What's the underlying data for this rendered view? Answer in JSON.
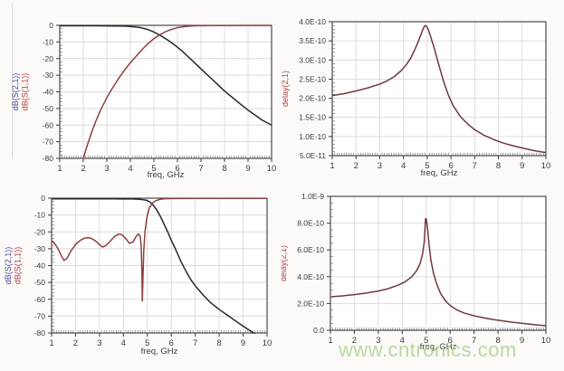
{
  "watermark": {
    "text": "www.cntronics.com",
    "color": "#a9d08e"
  },
  "axis_text_color": "#3b3b3b",
  "grid_color": "#d9d9de",
  "border_color": "#3a3a3a",
  "chart_data": [
    {
      "id": "top-left",
      "type": "line",
      "title": "",
      "xlabel": "freq, GHz",
      "xlim": [
        1,
        10
      ],
      "ylim": [
        -80,
        0
      ],
      "grid": true,
      "legend": "none",
      "x_ticks": {
        "values": [
          1,
          2,
          3,
          4,
          5,
          6,
          7,
          8,
          9,
          10
        ],
        "labels": [
          "1",
          "2",
          "3",
          "4",
          "5",
          "6",
          "7",
          "8",
          "9",
          "10"
        ]
      },
      "y_ticks": {
        "values": [
          0,
          -10,
          -20,
          -30,
          -40,
          -50,
          -60,
          -70,
          -80
        ],
        "labels": [
          "0",
          "-10",
          "-20",
          "-30",
          "-40",
          "-50",
          "-60",
          "-70",
          "-80"
        ]
      },
      "y_axis_title_lines": [
        {
          "text": "dB(S(2,1))",
          "color": "#4a4a9a"
        },
        {
          "text": "dB(S(1,1))",
          "color": "#b33b3b"
        }
      ],
      "series": [
        {
          "name": "dB(S(2,1))",
          "color": "#26262e",
          "points": [
            [
              1,
              -0.3
            ],
            [
              1.5,
              -0.3
            ],
            [
              2,
              -0.3
            ],
            [
              2.5,
              -0.3
            ],
            [
              3,
              -0.35
            ],
            [
              3.5,
              -0.4
            ],
            [
              3.8,
              -0.5
            ],
            [
              4.1,
              -0.8
            ],
            [
              4.4,
              -1.3
            ],
            [
              4.7,
              -2.3
            ],
            [
              5,
              -4
            ],
            [
              5.3,
              -6.3
            ],
            [
              5.6,
              -9
            ],
            [
              5.9,
              -12
            ],
            [
              6.2,
              -15.5
            ],
            [
              6.5,
              -19.5
            ],
            [
              6.8,
              -23.5
            ],
            [
              7.1,
              -27.5
            ],
            [
              7.4,
              -31.5
            ],
            [
              7.7,
              -35.5
            ],
            [
              8,
              -39.5
            ],
            [
              8.3,
              -43
            ],
            [
              8.6,
              -46.5
            ],
            [
              9,
              -51
            ],
            [
              9.3,
              -54
            ],
            [
              9.6,
              -57
            ],
            [
              10,
              -60
            ]
          ]
        },
        {
          "name": "dB(S(1,1))",
          "color": "#8d3f3e",
          "points": [
            [
              2,
              -80
            ],
            [
              2.15,
              -73
            ],
            [
              2.35,
              -64.5
            ],
            [
              2.55,
              -57
            ],
            [
              2.75,
              -50.5
            ],
            [
              3,
              -43.5
            ],
            [
              3.25,
              -37.5
            ],
            [
              3.5,
              -32
            ],
            [
              3.75,
              -27
            ],
            [
              4,
              -22.5
            ],
            [
              4.25,
              -18.5
            ],
            [
              4.5,
              -14.5
            ],
            [
              4.75,
              -11
            ],
            [
              5,
              -8
            ],
            [
              5.25,
              -5.7
            ],
            [
              5.5,
              -3.8
            ],
            [
              5.75,
              -2.4
            ],
            [
              6,
              -1.4
            ],
            [
              6.25,
              -0.8
            ],
            [
              6.5,
              -0.45
            ],
            [
              6.75,
              -0.3
            ],
            [
              7,
              -0.2
            ],
            [
              7.5,
              -0.15
            ],
            [
              8,
              -0.12
            ],
            [
              9,
              -0.1
            ],
            [
              10,
              -0.1
            ]
          ]
        }
      ]
    },
    {
      "id": "top-right",
      "type": "line",
      "title": "",
      "xlabel": "freq, GHz",
      "xlim": [
        1,
        10
      ],
      "ylim": [
        5e-11,
        4e-10
      ],
      "grid": true,
      "legend": "none",
      "x_ticks": {
        "values": [
          1,
          2,
          3,
          4,
          5,
          6,
          7,
          8,
          9,
          10
        ],
        "labels": [
          "1",
          "2",
          "3",
          "4",
          "5",
          "6",
          "7",
          "8",
          "9",
          "10"
        ]
      },
      "y_ticks": {
        "values": [
          4e-10,
          3.5e-10,
          3e-10,
          2.5e-10,
          2e-10,
          1.5e-10,
          1e-10,
          5e-11
        ],
        "labels": [
          "4.0E-10",
          "3.5E-10",
          "3.0E-10",
          "2.5E-10",
          "2.0E-10",
          "1.5E-10",
          "1.0E-10",
          "5.0E-11"
        ]
      },
      "y_axis_title_lines": [
        {
          "text": "delay(2,1)",
          "color": "#b34040"
        }
      ],
      "series": [
        {
          "name": "delay(2,1)",
          "color": "#6e3a3c",
          "points": [
            [
              1,
              2.07e-10
            ],
            [
              1.5,
              2.12e-10
            ],
            [
              2,
              2.19e-10
            ],
            [
              2.5,
              2.27e-10
            ],
            [
              3,
              2.37e-10
            ],
            [
              3.3,
              2.45e-10
            ],
            [
              3.6,
              2.56e-10
            ],
            [
              3.9,
              2.72e-10
            ],
            [
              4.1,
              2.86e-10
            ],
            [
              4.3,
              3.04e-10
            ],
            [
              4.5,
              3.3e-10
            ],
            [
              4.65,
              3.52e-10
            ],
            [
              4.78,
              3.74e-10
            ],
            [
              4.88,
              3.88e-10
            ],
            [
              4.95,
              3.9e-10
            ],
            [
              5.05,
              3.79e-10
            ],
            [
              5.15,
              3.6e-10
            ],
            [
              5.3,
              3.3e-10
            ],
            [
              5.5,
              2.85e-10
            ],
            [
              5.7,
              2.42e-10
            ],
            [
              5.9,
              2.07e-10
            ],
            [
              6.1,
              1.8e-10
            ],
            [
              6.4,
              1.52e-10
            ],
            [
              6.7,
              1.33e-10
            ],
            [
              7,
              1.18e-10
            ],
            [
              7.4,
              1.03e-10
            ],
            [
              7.8,
              9.2e-11
            ],
            [
              8.2,
              8.3e-11
            ],
            [
              8.6,
              7.6e-11
            ],
            [
              9,
              7e-11
            ],
            [
              9.5,
              6.3e-11
            ],
            [
              10,
              5.8e-11
            ]
          ]
        }
      ]
    },
    {
      "id": "bottom-left",
      "type": "line",
      "title": "",
      "xlabel": "freq, GHz",
      "xlim": [
        1,
        10
      ],
      "ylim": [
        -80,
        0
      ],
      "grid": true,
      "legend": "none",
      "x_ticks": {
        "values": [
          1,
          2,
          3,
          4,
          5,
          6,
          7,
          8,
          9,
          10
        ],
        "labels": [
          "1",
          "2",
          "3",
          "4",
          "5",
          "6",
          "7",
          "8",
          "9",
          "10"
        ]
      },
      "y_ticks": {
        "values": [
          0,
          -10,
          -20,
          -30,
          -40,
          -50,
          -60,
          -70,
          -80
        ],
        "labels": [
          "0",
          "-10",
          "-20",
          "-30",
          "-40",
          "-50",
          "-60",
          "-70",
          "-80"
        ]
      },
      "y_axis_title_lines": [
        {
          "text": "dB(S(2,1))",
          "color": "#4a4a9a"
        },
        {
          "text": "dB(S(1,1))",
          "color": "#b33b3b"
        }
      ],
      "series": [
        {
          "name": "dB(S(2,1))",
          "color": "#26262e",
          "points": [
            [
              1,
              -0.4
            ],
            [
              2,
              -0.4
            ],
            [
              3,
              -0.4
            ],
            [
              4,
              -0.45
            ],
            [
              4.4,
              -0.5
            ],
            [
              4.7,
              -0.7
            ],
            [
              4.95,
              -1.2
            ],
            [
              5.1,
              -2.2
            ],
            [
              5.25,
              -4.2
            ],
            [
              5.4,
              -7.2
            ],
            [
              5.55,
              -11
            ],
            [
              5.7,
              -15.5
            ],
            [
              5.85,
              -20
            ],
            [
              6,
              -25
            ],
            [
              6.2,
              -31
            ],
            [
              6.4,
              -37.5
            ],
            [
              6.6,
              -43
            ],
            [
              6.8,
              -48
            ],
            [
              7,
              -52
            ],
            [
              7.3,
              -57
            ],
            [
              7.6,
              -61.5
            ],
            [
              8,
              -66
            ],
            [
              8.4,
              -70
            ],
            [
              8.8,
              -74
            ],
            [
              9.2,
              -77.8
            ],
            [
              9.5,
              -80.5
            ]
          ]
        },
        {
          "name": "dB(S(1,1))",
          "color": "#8d3f3e",
          "points": [
            [
              1,
              -25
            ],
            [
              1.1,
              -26.5
            ],
            [
              1.25,
              -29.5
            ],
            [
              1.4,
              -34
            ],
            [
              1.52,
              -37
            ],
            [
              1.65,
              -35.5
            ],
            [
              1.8,
              -31.5
            ],
            [
              2,
              -27.5
            ],
            [
              2.2,
              -25
            ],
            [
              2.4,
              -23.6
            ],
            [
              2.6,
              -23.5
            ],
            [
              2.8,
              -25
            ],
            [
              3,
              -27.5
            ],
            [
              3.12,
              -29
            ],
            [
              3.28,
              -28
            ],
            [
              3.45,
              -25.5
            ],
            [
              3.62,
              -22.8
            ],
            [
              3.8,
              -21.3
            ],
            [
              3.95,
              -21.8
            ],
            [
              4.1,
              -24
            ],
            [
              4.25,
              -26.8
            ],
            [
              4.4,
              -26
            ],
            [
              4.52,
              -23
            ],
            [
              4.62,
              -21.2
            ],
            [
              4.7,
              -22.5
            ],
            [
              4.74,
              -28
            ],
            [
              4.77,
              -42
            ],
            [
              4.79,
              -61
            ],
            [
              4.815,
              -48
            ],
            [
              4.85,
              -31
            ],
            [
              4.9,
              -20
            ],
            [
              4.98,
              -11.5
            ],
            [
              5.08,
              -6
            ],
            [
              5.2,
              -3
            ],
            [
              5.35,
              -1.5
            ],
            [
              5.55,
              -0.6
            ],
            [
              5.8,
              -0.3
            ],
            [
              6.2,
              -0.2
            ],
            [
              7,
              -0.15
            ],
            [
              8,
              -0.15
            ],
            [
              10,
              -0.15
            ]
          ]
        }
      ]
    },
    {
      "id": "bottom-right",
      "type": "line",
      "title": "",
      "xlabel": "freq, GHz",
      "xlim": [
        1,
        10
      ],
      "ylim": [
        0,
        1e-09
      ],
      "grid": true,
      "legend": "none",
      "x_ticks": {
        "values": [
          1,
          2,
          3,
          4,
          5,
          6,
          7,
          8,
          9,
          10
        ],
        "labels": [
          "1",
          "2",
          "3",
          "4",
          "5",
          "6",
          "7",
          "8",
          "9",
          "10"
        ]
      },
      "y_ticks": {
        "values": [
          1e-09,
          8e-10,
          6e-10,
          4e-10,
          2e-10,
          0
        ],
        "labels": [
          "1.0E-9",
          "8.0E-10",
          "6.0E-10",
          "4.0E-10",
          "2.0E-10",
          "0.0"
        ]
      },
      "y_axis_title_lines": [
        {
          "text": "delay(2,1)",
          "color": "#b34040"
        }
      ],
      "series": [
        {
          "name": "delay(2,1)",
          "color": "#6e3a3c",
          "points": [
            [
              1,
              2.5e-10
            ],
            [
              1.5,
              2.57e-10
            ],
            [
              2,
              2.66e-10
            ],
            [
              2.5,
              2.78e-10
            ],
            [
              3,
              2.93e-10
            ],
            [
              3.4,
              3.1e-10
            ],
            [
              3.8,
              3.35e-10
            ],
            [
              4.1,
              3.6e-10
            ],
            [
              4.4,
              4e-10
            ],
            [
              4.6,
              4.45e-10
            ],
            [
              4.75,
              5e-10
            ],
            [
              4.85,
              5.7e-10
            ],
            [
              4.92,
              6.6e-10
            ],
            [
              4.97,
              8.3e-10
            ],
            [
              5.0,
              8.35e-10
            ],
            [
              5.05,
              7.7e-10
            ],
            [
              5.12,
              6.4e-10
            ],
            [
              5.2,
              5.2e-10
            ],
            [
              5.3,
              4.3e-10
            ],
            [
              5.45,
              3.4e-10
            ],
            [
              5.6,
              2.75e-10
            ],
            [
              5.8,
              2.2e-10
            ],
            [
              6,
              1.85e-10
            ],
            [
              6.3,
              1.5e-10
            ],
            [
              6.6,
              1.28e-10
            ],
            [
              7,
              1.08e-10
            ],
            [
              7.4,
              9.3e-11
            ],
            [
              7.8,
              8e-11
            ],
            [
              8.2,
              7e-11
            ],
            [
              8.6,
              6e-11
            ],
            [
              9,
              5.2e-11
            ],
            [
              9.5,
              4.2e-11
            ],
            [
              10,
              3.4e-11
            ]
          ]
        }
      ]
    }
  ]
}
